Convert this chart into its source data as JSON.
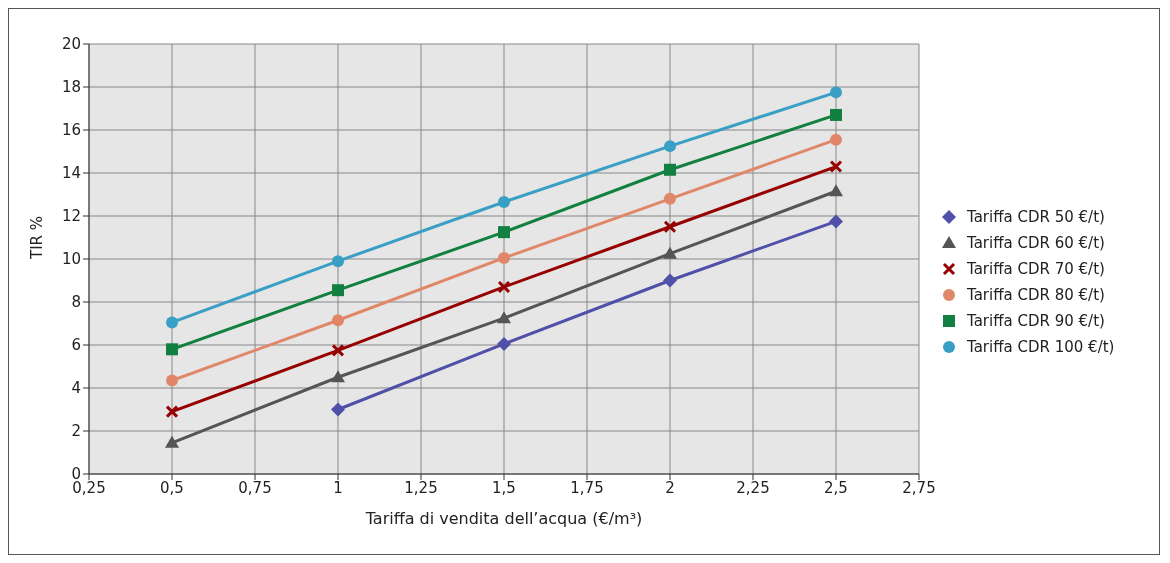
{
  "chart_data": {
    "type": "line",
    "xlabel": "Tariffa di vendita dell’acqua (€/m³)",
    "ylabel": "TIR %",
    "x": [
      0.5,
      1,
      1.5,
      2,
      2.5
    ],
    "series": [
      {
        "name": "Tariffa CDR 50 €/t)",
        "color": "#5050a8",
        "marker": "diamond",
        "values": [
          null,
          3.0,
          6.05,
          9.0,
          11.75
        ]
      },
      {
        "name": "Tariffa CDR 60 €/t)",
        "color": "#555555",
        "marker": "triangle",
        "values": [
          1.45,
          4.5,
          7.25,
          10.25,
          13.15
        ]
      },
      {
        "name": "Tariffa CDR 70 €/t)",
        "color": "#960000",
        "marker": "cross",
        "values": [
          2.9,
          5.75,
          8.7,
          11.5,
          14.3
        ]
      },
      {
        "name": "Tariffa CDR 80 €/t)",
        "color": "#e0876a",
        "marker": "circle",
        "values": [
          4.35,
          7.15,
          10.05,
          12.8,
          15.55
        ]
      },
      {
        "name": "Tariffa CDR 90 €/t)",
        "color": "#128040",
        "marker": "square",
        "values": [
          5.8,
          8.55,
          11.25,
          14.15,
          16.7
        ]
      },
      {
        "name": "Tariffa CDR 100 €/t)",
        "color": "#3a9fc5",
        "marker": "circle",
        "values": [
          7.05,
          9.9,
          12.65,
          15.25,
          17.75
        ]
      }
    ],
    "xlim": [
      0.25,
      2.75
    ],
    "xticks": [
      {
        "value": 0.25,
        "label": "0,25"
      },
      {
        "value": 0.5,
        "label": "0,5"
      },
      {
        "value": 0.75,
        "label": "0,75"
      },
      1,
      {
        "value": 1.25,
        "label": "1,25"
      },
      {
        "value": 1.5,
        "label": "1,5"
      },
      {
        "value": 1.75,
        "label": "1,75"
      },
      2,
      {
        "value": 2.25,
        "label": "2,25"
      },
      {
        "value": 2.5,
        "label": "2,5"
      },
      {
        "value": 2.75,
        "label": "2,75"
      }
    ],
    "ylim": [
      0,
      20
    ],
    "yticks": [
      0,
      2,
      4,
      6,
      8,
      10,
      12,
      14,
      16,
      18,
      20
    ],
    "grid": true,
    "legend": "right",
    "line_style": "solid"
  }
}
